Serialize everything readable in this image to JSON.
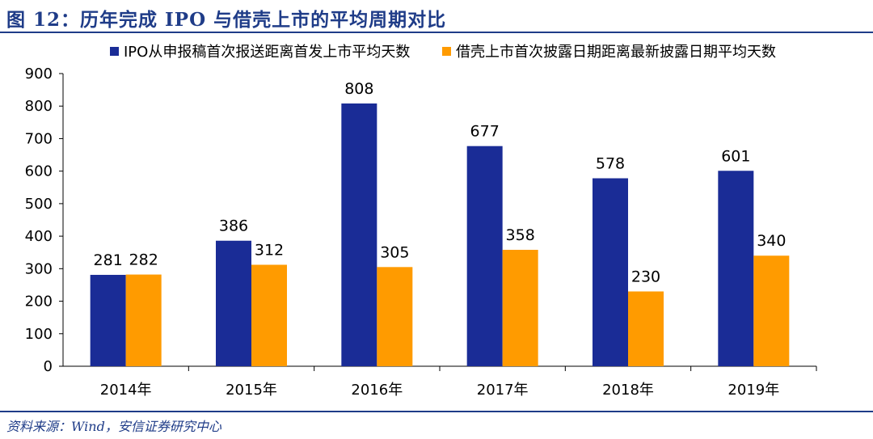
{
  "header": {
    "title": "图 12：历年完成 IPO 与借壳上市的平均周期对比"
  },
  "footer": {
    "source": "资料来源：Wind，安信证券研究中心"
  },
  "colors": {
    "series_a": "#1A2C96",
    "series_b": "#FF9B00",
    "accent": "#1F3C88"
  },
  "chart_data": {
    "type": "bar",
    "categories": [
      "2014年",
      "2015年",
      "2016年",
      "2017年",
      "2018年",
      "2019年"
    ],
    "series": [
      {
        "name": "IPO从申报稿首次报送距离首发上市平均天数",
        "values": [
          281,
          386,
          808,
          677,
          578,
          601
        ]
      },
      {
        "name": "借壳上市首次披露日期距离最新披露日期平均天数",
        "values": [
          282,
          312,
          305,
          358,
          230,
          340
        ]
      }
    ],
    "ylim": [
      0,
      900
    ],
    "yticks": [
      0,
      100,
      200,
      300,
      400,
      500,
      600,
      700,
      800,
      900
    ],
    "grid": false,
    "legend_position": "top",
    "data_labels": true
  }
}
